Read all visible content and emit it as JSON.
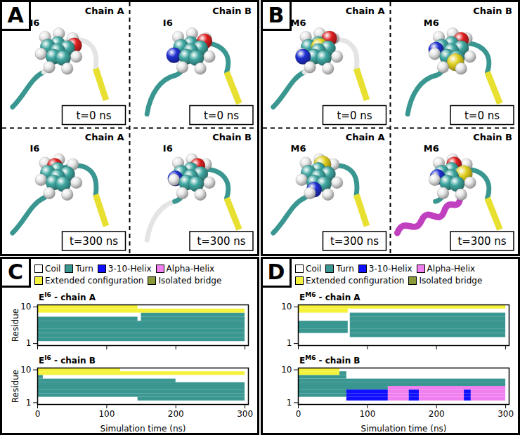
{
  "panels": [
    {
      "label": "A",
      "tiles": [
        {
          "chain": "Chain A",
          "residue": "I6",
          "time": "t=0 ns"
        },
        {
          "chain": "Chain B",
          "residue": "I6",
          "time": "t=0 ns"
        },
        {
          "chain": "Chain A",
          "residue": "I6",
          "time": "t=300 ns"
        },
        {
          "chain": "Chain B",
          "residue": "I6",
          "time": "t=300 ns"
        }
      ]
    },
    {
      "label": "B",
      "tiles": [
        {
          "chain": "Chain A",
          "residue": "M6",
          "time": "t=0 ns"
        },
        {
          "chain": "Chain B",
          "residue": "M6",
          "time": "t=0 ns"
        },
        {
          "chain": "Chain A",
          "residue": "M6",
          "time": "t=300 ns"
        },
        {
          "chain": "Chain B",
          "residue": "M6",
          "time": "t=300 ns"
        }
      ]
    }
  ],
  "chart_data": [
    {
      "type": "timeline",
      "panel": "C",
      "title": {
        "base": "E",
        "sup": "I6",
        "text": " - chain A"
      },
      "ylabel": "Residue",
      "xlim": [
        0,
        305
      ],
      "xticks": [
        0,
        100,
        200,
        300
      ],
      "ylim": [
        0.5,
        10.5
      ],
      "yticks": [
        1,
        10
      ],
      "tick_labels": "y",
      "series": [
        {
          "name": "Coil",
          "color": "#ffffff"
        },
        {
          "name": "Turn",
          "color": "#3a9690",
          "segments": [
            [
              2,
              0,
              300
            ],
            [
              3,
              0,
              300
            ],
            [
              4,
              0,
              300
            ],
            [
              5,
              0,
              300
            ],
            [
              6,
              0,
              300
            ],
            [
              7,
              0,
              145
            ],
            [
              7,
              150,
              300
            ],
            [
              8,
              150,
              300
            ]
          ]
        },
        {
          "name": "3-10-Helix",
          "color": "#1010ff",
          "segments": []
        },
        {
          "name": "Alpha-Helix",
          "color": "#f080f0",
          "segments": []
        },
        {
          "name": "Extended configuration",
          "color": "#f4f23a",
          "segments": [
            [
              9,
              0,
              300
            ],
            [
              10,
              0,
              145
            ]
          ]
        },
        {
          "name": "Isolated bridge",
          "color": "#8a9a3a",
          "segments": []
        }
      ]
    },
    {
      "type": "timeline",
      "panel": "C",
      "title": {
        "base": "E",
        "sup": "I6",
        "text": " - chain B"
      },
      "xlabel": "Simulation time (ns)",
      "ylabel": "Residue",
      "xlim": [
        0,
        305
      ],
      "xticks": [
        0,
        100,
        200,
        300
      ],
      "ylim": [
        0.5,
        10.5
      ],
      "yticks": [
        1,
        10
      ],
      "series": [
        {
          "name": "Coil",
          "color": "#ffffff"
        },
        {
          "name": "Turn",
          "color": "#3a9690",
          "segments": [
            [
              2,
              145,
              300
            ],
            [
              3,
              0,
              300
            ],
            [
              4,
              0,
              300
            ],
            [
              5,
              0,
              300
            ],
            [
              6,
              0,
              300
            ],
            [
              7,
              0,
              200
            ],
            [
              8,
              0,
              8
            ]
          ]
        },
        {
          "name": "3-10-Helix",
          "color": "#1010ff",
          "segments": []
        },
        {
          "name": "Alpha-Helix",
          "color": "#f080f0",
          "segments": []
        },
        {
          "name": "Extended configuration",
          "color": "#f4f23a",
          "segments": [
            [
              9,
              0,
              300
            ],
            [
              10,
              0,
              120
            ]
          ]
        },
        {
          "name": "Isolated bridge",
          "color": "#8a9a3a",
          "segments": []
        }
      ]
    },
    {
      "type": "timeline",
      "panel": "D",
      "title": {
        "base": "E",
        "sup": "M6",
        "text": " - chain A"
      },
      "xlim": [
        0,
        305
      ],
      "xticks": [
        0,
        100,
        200,
        300
      ],
      "ylim": [
        0.5,
        10.5
      ],
      "yticks": [
        1,
        10
      ],
      "tick_labels": "y",
      "series": [
        {
          "name": "Coil",
          "color": "#ffffff"
        },
        {
          "name": "Turn",
          "color": "#3a9690",
          "segments": [
            [
              4,
              0,
              72
            ],
            [
              5,
              0,
              72
            ],
            [
              6,
              0,
              72
            ],
            [
              3,
              75,
              300
            ],
            [
              4,
              75,
              300
            ],
            [
              5,
              75,
              300
            ],
            [
              6,
              75,
              300
            ],
            [
              7,
              75,
              300
            ],
            [
              8,
              75,
              300
            ]
          ]
        },
        {
          "name": "3-10-Helix",
          "color": "#1010ff",
          "segments": []
        },
        {
          "name": "Alpha-Helix",
          "color": "#f080f0",
          "segments": []
        },
        {
          "name": "Extended configuration",
          "color": "#f4f23a",
          "segments": [
            [
              9,
              0,
              72
            ],
            [
              10,
              0,
              300
            ]
          ]
        },
        {
          "name": "Isolated bridge",
          "color": "#8a9a3a",
          "segments": []
        }
      ]
    },
    {
      "type": "timeline",
      "panel": "D",
      "title": {
        "base": "E",
        "sup": "M6",
        "text": " - chain B"
      },
      "xlabel": "Simulation time (ns)",
      "xlim": [
        0,
        305
      ],
      "xticks": [
        0,
        100,
        200,
        300
      ],
      "ylim": [
        0.5,
        10.5
      ],
      "yticks": [
        1,
        10
      ],
      "series": [
        {
          "name": "Coil",
          "color": "#ffffff"
        },
        {
          "name": "Turn",
          "color": "#3a9690",
          "segments": [
            [
              3,
              0,
              70
            ],
            [
              4,
              0,
              70
            ],
            [
              5,
              0,
              130
            ],
            [
              6,
              0,
              300
            ],
            [
              7,
              0,
              300
            ],
            [
              8,
              0,
              70
            ],
            [
              9,
              60,
              70
            ]
          ]
        },
        {
          "name": "3-10-Helix",
          "color": "#1010ff",
          "segments": [
            [
              2,
              70,
              130
            ],
            [
              3,
              70,
              130
            ],
            [
              4,
              70,
              130
            ],
            [
              2,
              160,
              175
            ],
            [
              3,
              160,
              175
            ],
            [
              4,
              160,
              175
            ],
            [
              2,
              240,
              250
            ],
            [
              3,
              240,
              250
            ],
            [
              4,
              240,
              250
            ]
          ]
        },
        {
          "name": "Alpha-Helix",
          "color": "#f080f0",
          "segments": [
            [
              2,
              130,
              160
            ],
            [
              3,
              130,
              160
            ],
            [
              4,
              130,
              160
            ],
            [
              5,
              130,
              300
            ],
            [
              2,
              175,
              240
            ],
            [
              3,
              175,
              240
            ],
            [
              4,
              175,
              240
            ],
            [
              2,
              250,
              300
            ],
            [
              3,
              250,
              300
            ],
            [
              4,
              250,
              300
            ]
          ]
        },
        {
          "name": "Extended configuration",
          "color": "#f4f23a",
          "segments": [
            [
              9,
              0,
              60
            ],
            [
              10,
              0,
              60
            ]
          ]
        },
        {
          "name": "Isolated bridge",
          "color": "#8a9a3a",
          "segments": []
        }
      ]
    }
  ]
}
